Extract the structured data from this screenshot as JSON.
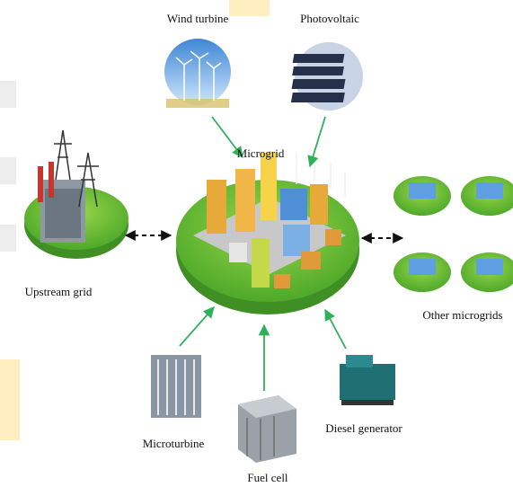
{
  "nodes": [
    {
      "label": "Wind turbine"
    },
    {
      "label": "Photovoltaic"
    },
    {
      "label": "Microgrid"
    },
    {
      "label": "Upstream grid"
    },
    {
      "label": "Other microgrids"
    },
    {
      "label": "Microturbine"
    },
    {
      "label": "Fuel cell"
    },
    {
      "label": "Diesel generator"
    }
  ]
}
